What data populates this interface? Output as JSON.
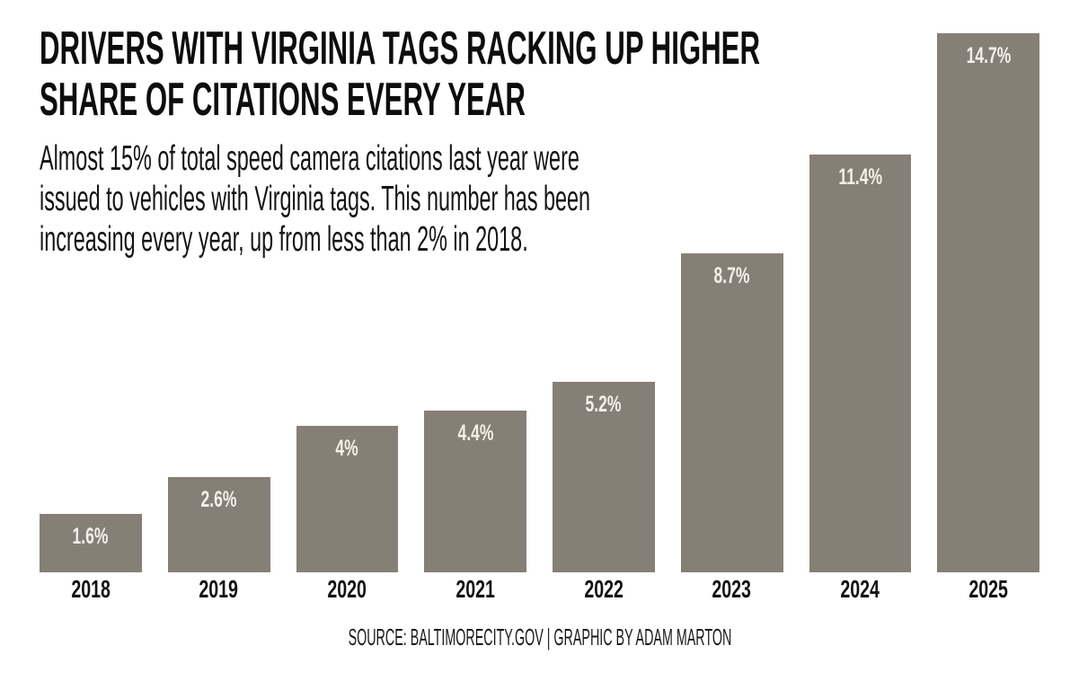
{
  "page": {
    "background": "#ffffff"
  },
  "header": {
    "title_lines": [
      "DRIVERS WITH VIRGINIA TAGS RACKING UP HIGHER",
      "SHARE OF CITATIONS EVERY YEAR"
    ],
    "subtitle_lines": [
      "Almost 15% of total speed camera citations last year were",
      "issued to vehicles with Virginia tags. This number has been",
      "increasing every year, up from less than 2% in 2018."
    ]
  },
  "chart_data": {
    "type": "bar",
    "title": "DRIVERS WITH VIRGINIA TAGS RACKING UP HIGHER SHARE OF CITATIONS EVERY YEAR",
    "subtitle": "Almost 15% of total speed camera citations last year were issued to vehicles with Virginia tags. This number has been increasing every year, up from less than 2% in 2018.",
    "categories": [
      "2018",
      "2019",
      "2020",
      "2021",
      "2022",
      "2023",
      "2024",
      "2025"
    ],
    "values": [
      1.6,
      2.6,
      4,
      4.4,
      5.2,
      8.7,
      11.4,
      14.7
    ],
    "value_labels": [
      "1.6%",
      "2.6%",
      "4%",
      "4.4%",
      "5.2%",
      "8.7%",
      "11.4%",
      "14.7%"
    ],
    "xlabel": "",
    "ylabel": "",
    "ylim": [
      0,
      14.7
    ],
    "grid": false,
    "legend": false,
    "bar_color": "#867f76",
    "value_label_color": "#f2f0eb",
    "axis_label_color": "#121212"
  },
  "footer": {
    "source": "SOURCE: BALTIMORECITY.GOV | GRAPHIC BY ADAM MARTON"
  }
}
